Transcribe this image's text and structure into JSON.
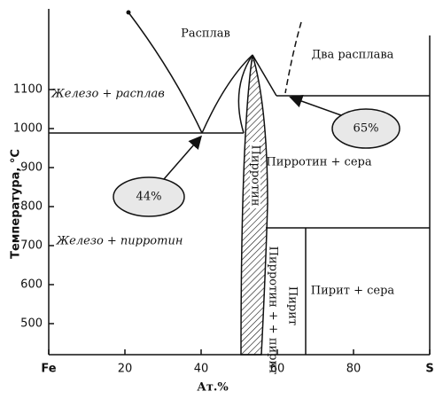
{
  "axes": {
    "y_label": "Температура, °C",
    "x_label": "Ат.%",
    "yticks": [
      500,
      600,
      700,
      800,
      900,
      1000,
      1100
    ],
    "xticks": [
      {
        "value": 0,
        "label": "Fe"
      },
      20,
      40,
      60,
      80,
      {
        "value": 100,
        "label": "S"
      }
    ]
  },
  "regions": {
    "melt": "Расплав",
    "two_melts": "Два расплава",
    "iron_melt": "Железо + расплав",
    "pyrrhotite_sulfur": "Пирротин + сера",
    "iron_pyrrhotite": "Железо + пирротин",
    "pyrite_sulfur": "Пирит + сера",
    "pyrrhotite": "Пирротин",
    "pyrrhotite_pyrite": "Пирротин + + пирит",
    "pyrite": "Пирит"
  },
  "callouts": [
    "44%",
    "65%"
  ]
}
